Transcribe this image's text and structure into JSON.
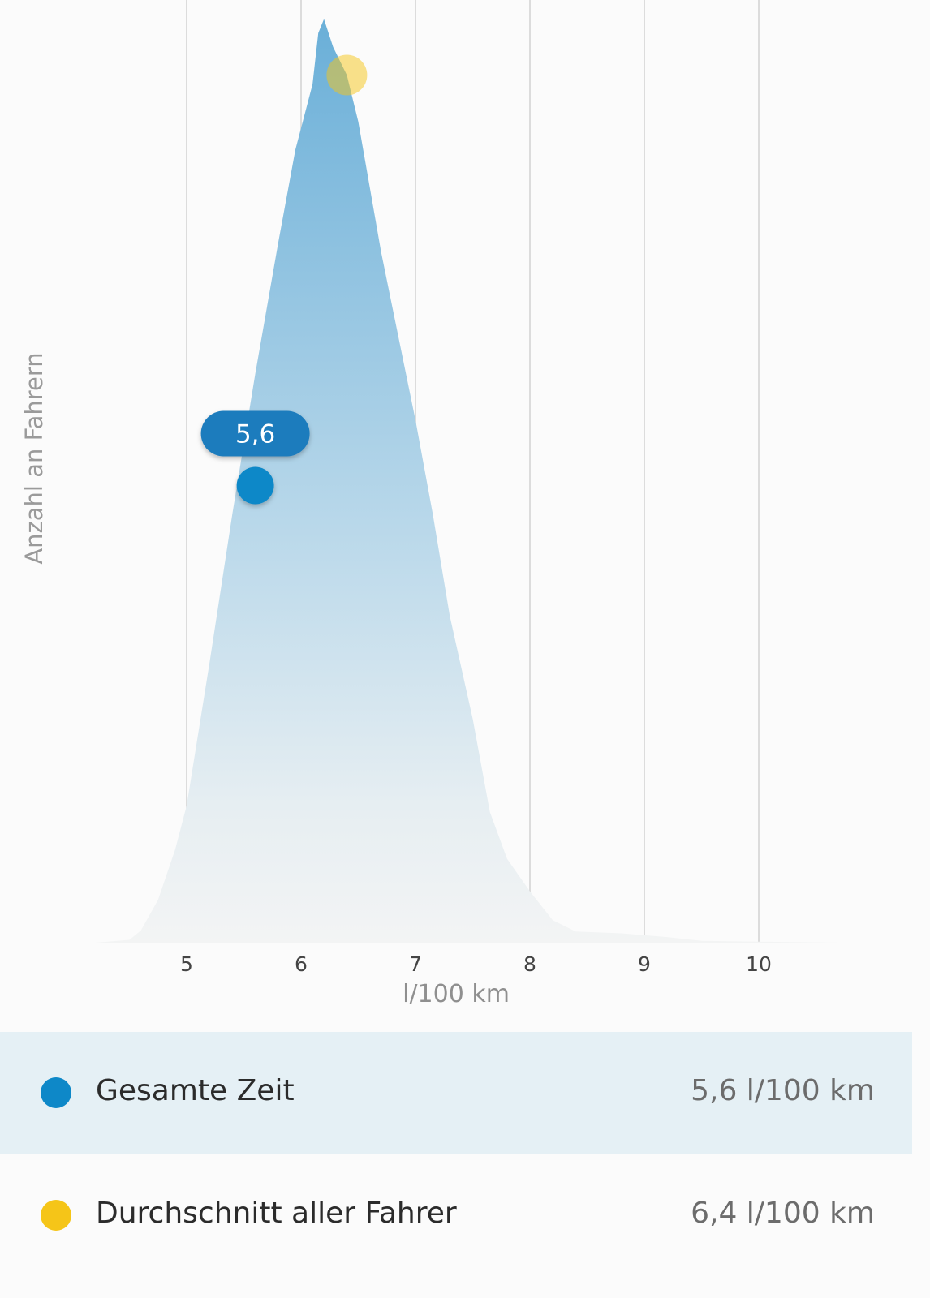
{
  "chart_data": {
    "type": "area",
    "ylabel": "Anzahl an Fahrern",
    "xlabel": "l/100 km",
    "xlim": [
      4.2,
      10.7
    ],
    "ylim": [
      0,
      100
    ],
    "x_ticks": [
      "5",
      "6",
      "7",
      "8",
      "9",
      "10"
    ],
    "x_tick_values": [
      5,
      6,
      7,
      8,
      9,
      10
    ],
    "grid": "vertical",
    "distribution": {
      "x": [
        4.2,
        4.5,
        4.6,
        4.75,
        4.9,
        5.0,
        5.2,
        5.4,
        5.6,
        5.8,
        5.95,
        6.1,
        6.15,
        6.2,
        6.28,
        6.4,
        6.5,
        6.6,
        6.7,
        6.85,
        7.0,
        7.15,
        7.3,
        7.5,
        7.65,
        7.8,
        8.0,
        8.2,
        8.4,
        8.8,
        9.2,
        9.5,
        10.0,
        10.7
      ],
      "y": [
        0,
        0.3,
        1.3,
        4.6,
        10,
        14.7,
        30,
        46,
        61,
        75,
        85,
        92,
        97.5,
        99,
        96,
        93,
        88,
        81,
        74,
        65,
        56,
        46,
        35,
        24,
        14,
        9,
        5.5,
        2.4,
        1.2,
        1,
        0.6,
        0.2,
        0.1,
        0
      ]
    },
    "markers": [
      {
        "name": "Gesamte Zeit",
        "x": 5.6,
        "y": 49,
        "color": "#0e88c8",
        "label": "5,6"
      },
      {
        "name": "Durchschnitt aller Fahrer",
        "x": 6.4,
        "y": 93,
        "color": "#f5c518",
        "label": ""
      }
    ]
  },
  "legend": [
    {
      "label": "Gesamte Zeit",
      "value": "5,6 l/100 km",
      "color": "#0e88c8"
    },
    {
      "label": "Durchschnitt aller Fahrer",
      "value": "6,4 l/100 km",
      "color": "#f5c518"
    }
  ]
}
